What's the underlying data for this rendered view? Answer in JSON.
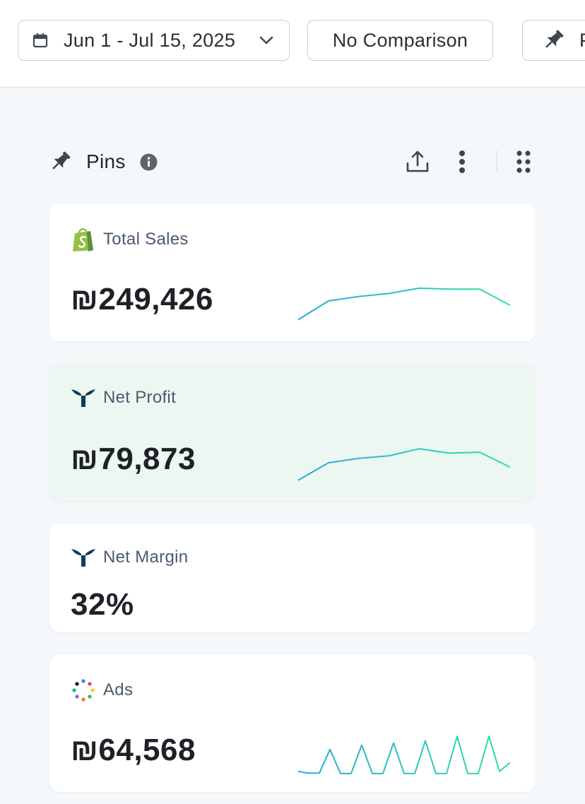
{
  "toolbar": {
    "date_range": {
      "label": "Jun 1 - Jul 15, 2025",
      "icon": "calendar-icon",
      "chevron": "chevron-down-icon"
    },
    "comparison": {
      "label": "No Comparison"
    },
    "pins": {
      "label": "Pins",
      "icon": "pin-icon"
    }
  },
  "section": {
    "title": "Pins",
    "icon": "pin-icon",
    "actions": [
      "info-icon",
      "share-icon",
      "more-vertical-icon",
      "drag-grip-icon"
    ]
  },
  "cards": [
    {
      "title": "Total Sales",
      "value": "₪249,426",
      "source_icon": "shopify-icon",
      "highlighted": false,
      "trend": [
        0.12,
        0.55,
        0.65,
        0.72,
        0.84,
        0.82,
        0.82,
        0.45
      ]
    },
    {
      "title": "Net Profit",
      "value": "₪79,873",
      "source_icon": "triple-whale-icon",
      "highlighted": true,
      "trend": [
        0.1,
        0.5,
        0.6,
        0.66,
        0.82,
        0.72,
        0.74,
        0.4
      ]
    },
    {
      "title": "Net Margin",
      "value": "32%",
      "source_icon": "triple-whale-icon",
      "highlighted": false,
      "trend": []
    },
    {
      "title": "Ads",
      "value": "₪64,568",
      "source_icon": "ads-multicolor-icon",
      "highlighted": false,
      "trend": [
        0.1,
        0.06,
        0.06,
        0.6,
        0.05,
        0.05,
        0.7,
        0.05,
        0.05,
        0.75,
        0.05,
        0.05,
        0.8,
        0.05,
        0.05,
        0.9,
        0.05,
        0.05,
        0.9,
        0.1,
        0.3
      ]
    }
  ],
  "colors": {
    "accent_start": "#2ba6d6",
    "accent_end": "#2fe0a8",
    "highlight_bg": "#ecf7f2",
    "shopify_green": "#95bf47",
    "brand_navy": "#0f3c5c"
  }
}
